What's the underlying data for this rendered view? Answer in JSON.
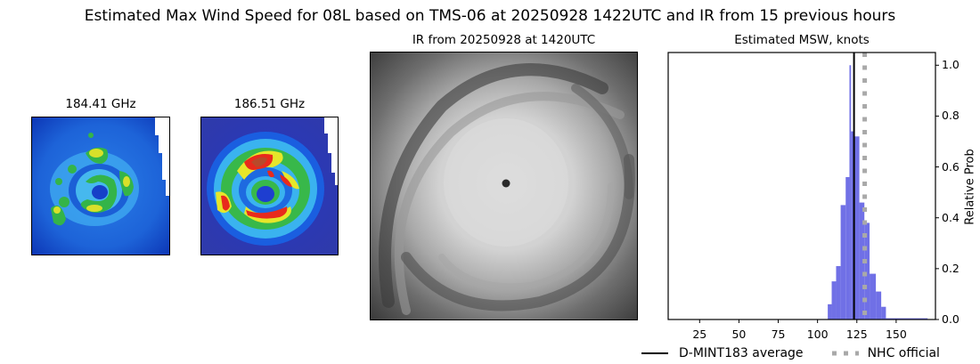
{
  "figure": {
    "suptitle": "Estimated Max Wind Speed for 08L based on TMS-06 at 20250928 1422UTC and IR from 15 previous hours"
  },
  "panels": {
    "mw1": {
      "title": "184.41 GHz"
    },
    "mw2": {
      "title": "186.51 GHz"
    },
    "ir": {
      "title": "IR from 20250928 at 1420UTC"
    },
    "hist": {
      "title": "Estimated MSW, knots",
      "ylabel": "Relative Prob"
    }
  },
  "legend": {
    "items": [
      {
        "label": "D-MINT183 average",
        "style": "solid",
        "color": "#000000"
      },
      {
        "label": "NHC official",
        "style": "dotted",
        "color": "#a9a9a9"
      }
    ]
  },
  "colors": {
    "bar": "#7070e6",
    "mean_line": "#000000",
    "nhc_line": "#a9a9a9"
  },
  "chart_data": {
    "type": "bar",
    "title": "Estimated MSW, knots",
    "suptitle": "Estimated Max Wind Speed for 08L based on TMS-06 at 20250928 1422UTC and IR from 15 previous hours",
    "xlabel": "",
    "ylabel": "Relative Prob",
    "xlim": [
      5,
      175
    ],
    "ylim": [
      0,
      1.05
    ],
    "xticks": [
      25,
      50,
      75,
      100,
      125,
      150
    ],
    "xtick_labels": [
      "25",
      "50",
      "75",
      "100",
      "125",
      "150"
    ],
    "yticks": [
      0.0,
      0.2,
      0.4,
      0.6,
      0.8,
      1.0
    ],
    "ytick_labels": [
      "0.0",
      "0.2",
      "0.4",
      "0.6",
      "0.8",
      "1.0"
    ],
    "yaxis_position": "right",
    "grid": false,
    "bins": [
      {
        "x0": 106.5,
        "x1": 109.0,
        "value": 0.06
      },
      {
        "x0": 109.0,
        "x1": 111.8,
        "value": 0.15
      },
      {
        "x0": 111.8,
        "x1": 114.7,
        "value": 0.21
      },
      {
        "x0": 114.7,
        "x1": 117.9,
        "value": 0.45
      },
      {
        "x0": 117.9,
        "x1": 120.3,
        "value": 0.56
      },
      {
        "x0": 120.3,
        "x1": 121.3,
        "value": 1.0
      },
      {
        "x0": 121.3,
        "x1": 123.6,
        "value": 0.74
      },
      {
        "x0": 123.6,
        "x1": 126.6,
        "value": 0.72
      },
      {
        "x0": 126.6,
        "x1": 129.8,
        "value": 0.46
      },
      {
        "x0": 129.8,
        "x1": 133.1,
        "value": 0.38
      },
      {
        "x0": 133.1,
        "x1": 137.1,
        "value": 0.18
      },
      {
        "x0": 137.1,
        "x1": 140.5,
        "value": 0.11
      },
      {
        "x0": 140.5,
        "x1": 143.5,
        "value": 0.05
      },
      {
        "x0": 143.5,
        "x1": 170.0,
        "value": 0.005
      }
    ],
    "vlines": [
      {
        "name": "D-MINT183 average",
        "x": 123.2,
        "style": "solid",
        "color": "#000000"
      },
      {
        "name": "NHC official",
        "x": 130,
        "style": "dotted",
        "color": "#a9a9a9"
      }
    ],
    "legend": [
      "D-MINT183 average",
      "NHC official"
    ],
    "legend_position": "below"
  }
}
